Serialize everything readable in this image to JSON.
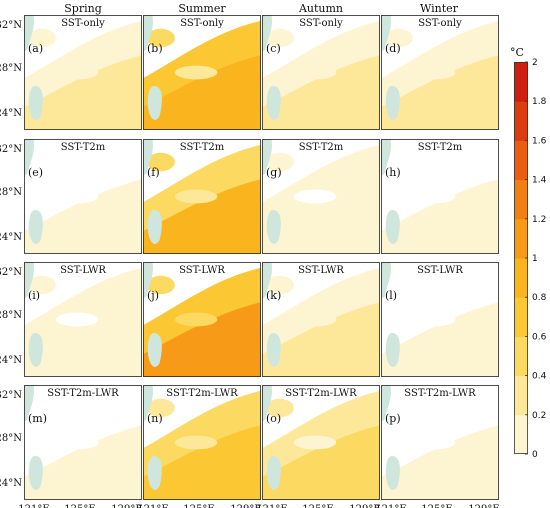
{
  "chart_data": {
    "type": "heatmap",
    "seasons": [
      "Spring",
      "Summer",
      "Autumn",
      "Winter"
    ],
    "experiments": [
      "SST-only",
      "SST-T2m",
      "SST-LWR",
      "SST-T2m-LWR"
    ],
    "panel_letters": [
      "(a)",
      "(b)",
      "(c)",
      "(d)",
      "(e)",
      "(f)",
      "(g)",
      "(h)",
      "(i)",
      "(j)",
      "(k)",
      "(l)",
      "(m)",
      "(n)",
      "(o)",
      "(p)"
    ],
    "lat_ticks": [
      "32°N",
      "28°N",
      "24°N"
    ],
    "lon_ticks": [
      "121°E",
      "125°E",
      "129°E"
    ],
    "colorbar": {
      "unit": "°C",
      "min": 0,
      "max": 2,
      "step": 0.2,
      "tick_labels": [
        "0",
        "0.2",
        "0.4",
        "0.6",
        "0.8",
        "1",
        "1.2",
        "1.4",
        "1.6",
        "1.8",
        "2"
      ],
      "colors": [
        "#ffffff",
        "#fdf5d2",
        "#fde89a",
        "#fcd960",
        "#fbc733",
        "#f9b41e",
        "#f69a17",
        "#f07f14",
        "#e85f12",
        "#dc3d10",
        "#cf1f0e"
      ]
    },
    "panel_mean_difference": [
      [
        0.35,
        0.95,
        0.3,
        0.28
      ],
      [
        0.12,
        0.9,
        0.18,
        0.12
      ],
      [
        0.18,
        1.0,
        0.35,
        0.12
      ],
      [
        0.12,
        0.75,
        0.5,
        0.1
      ]
    ]
  }
}
